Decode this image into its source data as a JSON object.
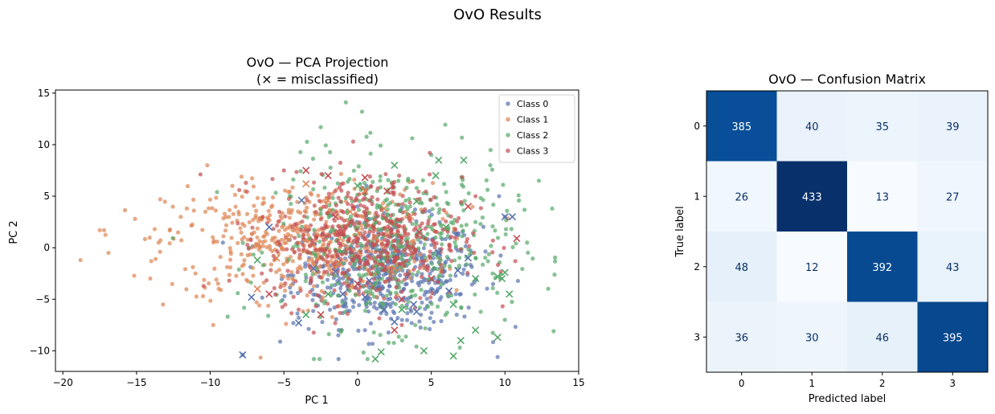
{
  "figure": {
    "suptitle": "OvO Results"
  },
  "chart_data": [
    {
      "type": "scatter",
      "title_line1": "OvO — PCA Projection",
      "title_line2": "(× = misclassified)",
      "xlabel": "PC 1",
      "ylabel": "PC 2",
      "xlim": [
        -20.5,
        15
      ],
      "ylim": [
        -12,
        15.3
      ],
      "xticks": [
        -20,
        -15,
        -10,
        -5,
        0,
        5,
        10,
        15
      ],
      "yticks": [
        -10,
        -5,
        0,
        5,
        10,
        15
      ],
      "legend_position": "top-right",
      "misclassified_marker": "x",
      "series": [
        {
          "name": "Class 0",
          "color": "#5874ae",
          "cluster": {
            "center": [
              2.0,
              -2.5
            ],
            "spread": [
              3.2,
              2.6
            ],
            "count": 499
          },
          "points": [
            [
              -7.8,
              -10.4
            ],
            [
              9.5,
              -10.6
            ],
            [
              -4.0,
              -6.8
            ],
            [
              2.0,
              -5.5
            ],
            [
              7.0,
              -4.5
            ],
            [
              10.0,
              3.0
            ],
            [
              9.6,
              5.0
            ],
            [
              -3.4,
              1.6
            ],
            [
              0.5,
              -8.0
            ],
            [
              4.5,
              -3.0
            ]
          ],
          "misclassified": [
            [
              -7.8,
              -10.4
            ],
            [
              -7.2,
              -4.8
            ],
            [
              -4.0,
              -7.3
            ],
            [
              -3.0,
              -2.0
            ],
            [
              -1.5,
              -2.3
            ],
            [
              0.5,
              -4.8
            ],
            [
              1.8,
              -6.0
            ],
            [
              2.5,
              -7.2
            ],
            [
              4.0,
              -6.2
            ],
            [
              5.5,
              -0.5
            ],
            [
              6.2,
              -4.2
            ],
            [
              6.8,
              -2.2
            ],
            [
              10.0,
              3.0
            ],
            [
              10.5,
              3.0
            ],
            [
              -6.0,
              2.0
            ],
            [
              -3.8,
              4.6
            ],
            [
              -1.0,
              -4.5
            ],
            [
              3.8,
              -5.5
            ],
            [
              7.5,
              -1.0
            ],
            [
              0.8,
              -3.2
            ]
          ]
        },
        {
          "name": "Class 1",
          "color": "#dd8452",
          "cluster": {
            "center": [
              -4.0,
              0.6
            ],
            "spread": [
              4.5,
              2.8
            ],
            "count": 499
          },
          "points": [
            [
              -18.8,
              -1.2
            ],
            [
              -17.2,
              1.7
            ],
            [
              -16.9,
              -0.5
            ],
            [
              -15.1,
              2.8
            ],
            [
              -13.2,
              -5.5
            ],
            [
              -10.2,
              8.0
            ],
            [
              -9.8,
              -7.5
            ],
            [
              -14.0,
              -1.3
            ],
            [
              -13.5,
              0.5
            ],
            [
              -12.0,
              3.0
            ],
            [
              -11.0,
              -2.5
            ],
            [
              -8.5,
              6.0
            ]
          ],
          "misclassified": [
            [
              -6.8,
              -4.0
            ],
            [
              -5.5,
              -1.0
            ],
            [
              -3.5,
              6.2
            ],
            [
              -2.0,
              4.6
            ],
            [
              -0.5,
              3.5
            ],
            [
              1.2,
              1.0
            ],
            [
              2.5,
              -2.0
            ],
            [
              3.6,
              3.0
            ],
            [
              -4.8,
              1.0
            ],
            [
              0.5,
              5.5
            ],
            [
              -1.2,
              -1.5
            ],
            [
              1.8,
              3.8
            ]
          ]
        },
        {
          "name": "Class 2",
          "color": "#55a868",
          "cluster": {
            "center": [
              2.5,
              0.3
            ],
            "spread": [
              4.0,
              4.0
            ],
            "count": 495
          },
          "points": [
            [
              -0.8,
              14.1
            ],
            [
              0.3,
              13.2
            ],
            [
              13.2,
              3.8
            ],
            [
              13.3,
              -8.1
            ],
            [
              -2.5,
              11.7
            ],
            [
              12.3,
              6.5
            ],
            [
              11.5,
              0.5
            ],
            [
              -5.2,
              -5.2
            ],
            [
              9.0,
              8.0
            ],
            [
              5.0,
              9.0
            ]
          ],
          "misclassified": [
            [
              5.5,
              8.5
            ],
            [
              7.2,
              8.5
            ],
            [
              5.3,
              7.0
            ],
            [
              9.5,
              -2.8
            ],
            [
              9.8,
              -3.0
            ],
            [
              10.0,
              -2.4
            ],
            [
              10.3,
              -4.5
            ],
            [
              6.5,
              -10.5
            ],
            [
              1.2,
              -10.8
            ],
            [
              1.6,
              -10.1
            ],
            [
              8.0,
              -8.0
            ],
            [
              9.5,
              -8.7
            ],
            [
              -6.8,
              -1.2
            ],
            [
              4.0,
              4.5
            ],
            [
              6.0,
              2.0
            ],
            [
              8.0,
              -3.0
            ],
            [
              3.0,
              -6.0
            ],
            [
              0.0,
              6.0
            ],
            [
              -2.0,
              -4.5
            ],
            [
              6.5,
              -5.5
            ],
            [
              2.5,
              8.0
            ],
            [
              -3.5,
              -6.5
            ],
            [
              7.0,
              -9.0
            ],
            [
              4.5,
              -10.0
            ]
          ]
        },
        {
          "name": "Class 3",
          "color": "#c44e52",
          "cluster": {
            "center": [
              0.5,
              0.8
            ],
            "spread": [
              3.3,
              3.0
            ],
            "count": 507
          },
          "points": [
            [
              -0.3,
              10.3
            ],
            [
              4.9,
              9.2
            ],
            [
              10.7,
              -1.3
            ],
            [
              -4.0,
              -6.0
            ],
            [
              8.0,
              5.0
            ],
            [
              -6.5,
              -2.5
            ],
            [
              3.0,
              -7.5
            ],
            [
              -5.0,
              7.5
            ]
          ],
          "misclassified": [
            [
              10.8,
              0.9
            ],
            [
              -3.5,
              7.5
            ],
            [
              -2.0,
              7.0
            ],
            [
              0.5,
              6.8
            ],
            [
              2.0,
              5.5
            ],
            [
              -1.5,
              3.0
            ],
            [
              3.0,
              -5.0
            ],
            [
              5.0,
              -3.0
            ],
            [
              -6.0,
              -4.5
            ],
            [
              2.5,
              -8.0
            ],
            [
              7.5,
              4.0
            ],
            [
              -2.5,
              -6.5
            ],
            [
              4.2,
              1.5
            ],
            [
              0.0,
              -3.5
            ]
          ]
        }
      ]
    },
    {
      "type": "heatmap",
      "title": "OvO — Confusion Matrix",
      "xlabel": "Predicted label",
      "ylabel": "True label",
      "labels": [
        "0",
        "1",
        "2",
        "3"
      ],
      "colormap": "Blues",
      "matrix": [
        [
          385,
          40,
          35,
          39
        ],
        [
          26,
          433,
          13,
          27
        ],
        [
          48,
          12,
          392,
          43
        ],
        [
          36,
          30,
          46,
          395
        ]
      ]
    }
  ]
}
